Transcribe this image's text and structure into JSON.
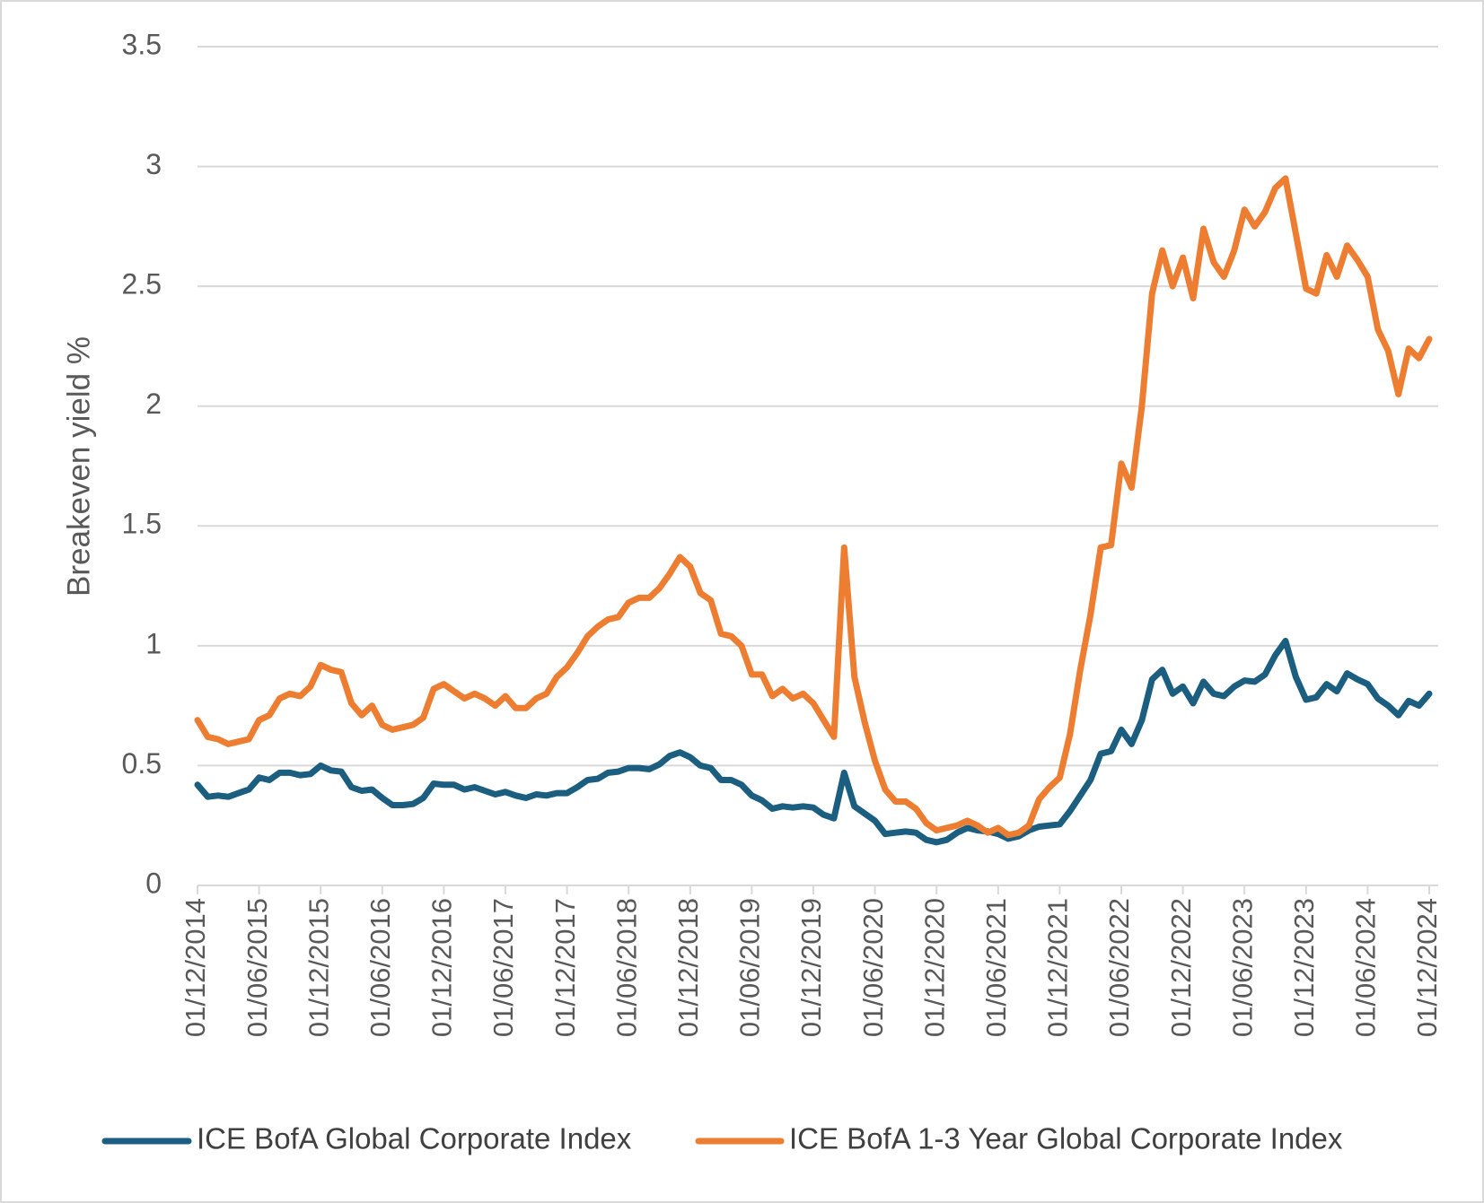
{
  "chart_data": {
    "type": "line",
    "y_label": "Breakeven yield %",
    "categories": [
      "01/12/2014",
      null,
      null,
      null,
      null,
      null,
      "01/06/2015",
      null,
      null,
      null,
      null,
      null,
      "01/12/2015",
      null,
      null,
      null,
      null,
      null,
      "01/06/2016",
      null,
      null,
      null,
      null,
      null,
      "01/12/2016",
      null,
      null,
      null,
      null,
      null,
      "01/06/2017",
      null,
      null,
      null,
      null,
      null,
      "01/12/2017",
      null,
      null,
      null,
      null,
      null,
      "01/06/2018",
      null,
      null,
      null,
      null,
      null,
      "01/12/2018",
      null,
      null,
      null,
      null,
      null,
      "01/06/2019",
      null,
      null,
      null,
      null,
      null,
      "01/12/2019",
      null,
      null,
      null,
      null,
      null,
      "01/06/2020",
      null,
      null,
      null,
      null,
      null,
      "01/12/2020",
      null,
      null,
      null,
      null,
      null,
      "01/06/2021",
      null,
      null,
      null,
      null,
      null,
      "01/12/2021",
      null,
      null,
      null,
      null,
      null,
      "01/06/2022",
      null,
      null,
      null,
      null,
      null,
      "01/12/2022",
      null,
      null,
      null,
      null,
      null,
      "01/06/2023",
      null,
      null,
      null,
      null,
      null,
      "01/12/2023",
      null,
      null,
      null,
      null,
      null,
      "01/06/2024",
      null,
      null,
      null,
      null,
      null,
      "01/12/2024"
    ],
    "series": [
      {
        "name": "ICE BofA Global Corporate Index",
        "color": "#1b5e80",
        "values": [
          0.42,
          0.37,
          0.375,
          0.37,
          0.385,
          0.4,
          0.45,
          0.44,
          0.47,
          0.47,
          0.46,
          0.465,
          0.5,
          0.48,
          0.475,
          0.41,
          0.395,
          0.4,
          0.365,
          0.335,
          0.335,
          0.34,
          0.365,
          0.425,
          0.42,
          0.42,
          0.4,
          0.41,
          0.395,
          0.38,
          0.39,
          0.375,
          0.365,
          0.38,
          0.375,
          0.385,
          0.385,
          0.41,
          0.44,
          0.445,
          0.47,
          0.475,
          0.49,
          0.49,
          0.485,
          0.505,
          0.54,
          0.555,
          0.535,
          0.5,
          0.49,
          0.44,
          0.44,
          0.42,
          0.375,
          0.355,
          0.32,
          0.33,
          0.325,
          0.33,
          0.325,
          0.295,
          0.28,
          0.47,
          0.33,
          0.3,
          0.27,
          0.215,
          0.22,
          0.225,
          0.22,
          0.19,
          0.18,
          0.19,
          0.22,
          0.24,
          0.23,
          0.225,
          0.215,
          0.195,
          0.205,
          0.23,
          0.245,
          0.25,
          0.255,
          0.31,
          0.375,
          0.44,
          0.55,
          0.56,
          0.65,
          0.59,
          0.69,
          0.86,
          0.9,
          0.8,
          0.83,
          0.76,
          0.85,
          0.8,
          0.79,
          0.83,
          0.855,
          0.85,
          0.88,
          0.96,
          1.02,
          0.87,
          0.775,
          0.785,
          0.84,
          0.81,
          0.885,
          0.86,
          0.84,
          0.78,
          0.75,
          0.71,
          0.77,
          0.75,
          0.8
        ]
      },
      {
        "name": "ICE BofA 1-3 Year Global Corporate Index",
        "color": "#ed7d31",
        "values": [
          0.69,
          0.62,
          0.61,
          0.59,
          0.6,
          0.61,
          0.69,
          0.71,
          0.78,
          0.8,
          0.79,
          0.83,
          0.92,
          0.9,
          0.89,
          0.76,
          0.71,
          0.75,
          0.67,
          0.65,
          0.66,
          0.67,
          0.7,
          0.82,
          0.84,
          0.81,
          0.78,
          0.8,
          0.78,
          0.75,
          0.79,
          0.74,
          0.74,
          0.78,
          0.8,
          0.87,
          0.91,
          0.97,
          1.04,
          1.08,
          1.11,
          1.12,
          1.18,
          1.2,
          1.2,
          1.24,
          1.3,
          1.37,
          1.33,
          1.22,
          1.19,
          1.05,
          1.04,
          1.0,
          0.88,
          0.88,
          0.79,
          0.82,
          0.78,
          0.8,
          0.76,
          0.69,
          0.62,
          1.41,
          0.87,
          0.68,
          0.52,
          0.4,
          0.35,
          0.35,
          0.32,
          0.26,
          0.23,
          0.24,
          0.25,
          0.27,
          0.25,
          0.22,
          0.24,
          0.21,
          0.22,
          0.25,
          0.36,
          0.41,
          0.45,
          0.63,
          0.9,
          1.13,
          1.41,
          1.42,
          1.76,
          1.66,
          2.0,
          2.47,
          2.65,
          2.5,
          2.62,
          2.45,
          2.74,
          2.6,
          2.54,
          2.65,
          2.82,
          2.75,
          2.81,
          2.91,
          2.95,
          2.72,
          2.49,
          2.47,
          2.63,
          2.54,
          2.67,
          2.61,
          2.54,
          2.32,
          2.23,
          2.05,
          2.24,
          2.2,
          2.28
        ]
      }
    ],
    "ylim": [
      0,
      3.5
    ],
    "yticks": [
      0,
      0.5,
      1,
      1.5,
      2,
      2.5,
      3,
      3.5
    ],
    "grid": true,
    "legend": "bottom"
  }
}
